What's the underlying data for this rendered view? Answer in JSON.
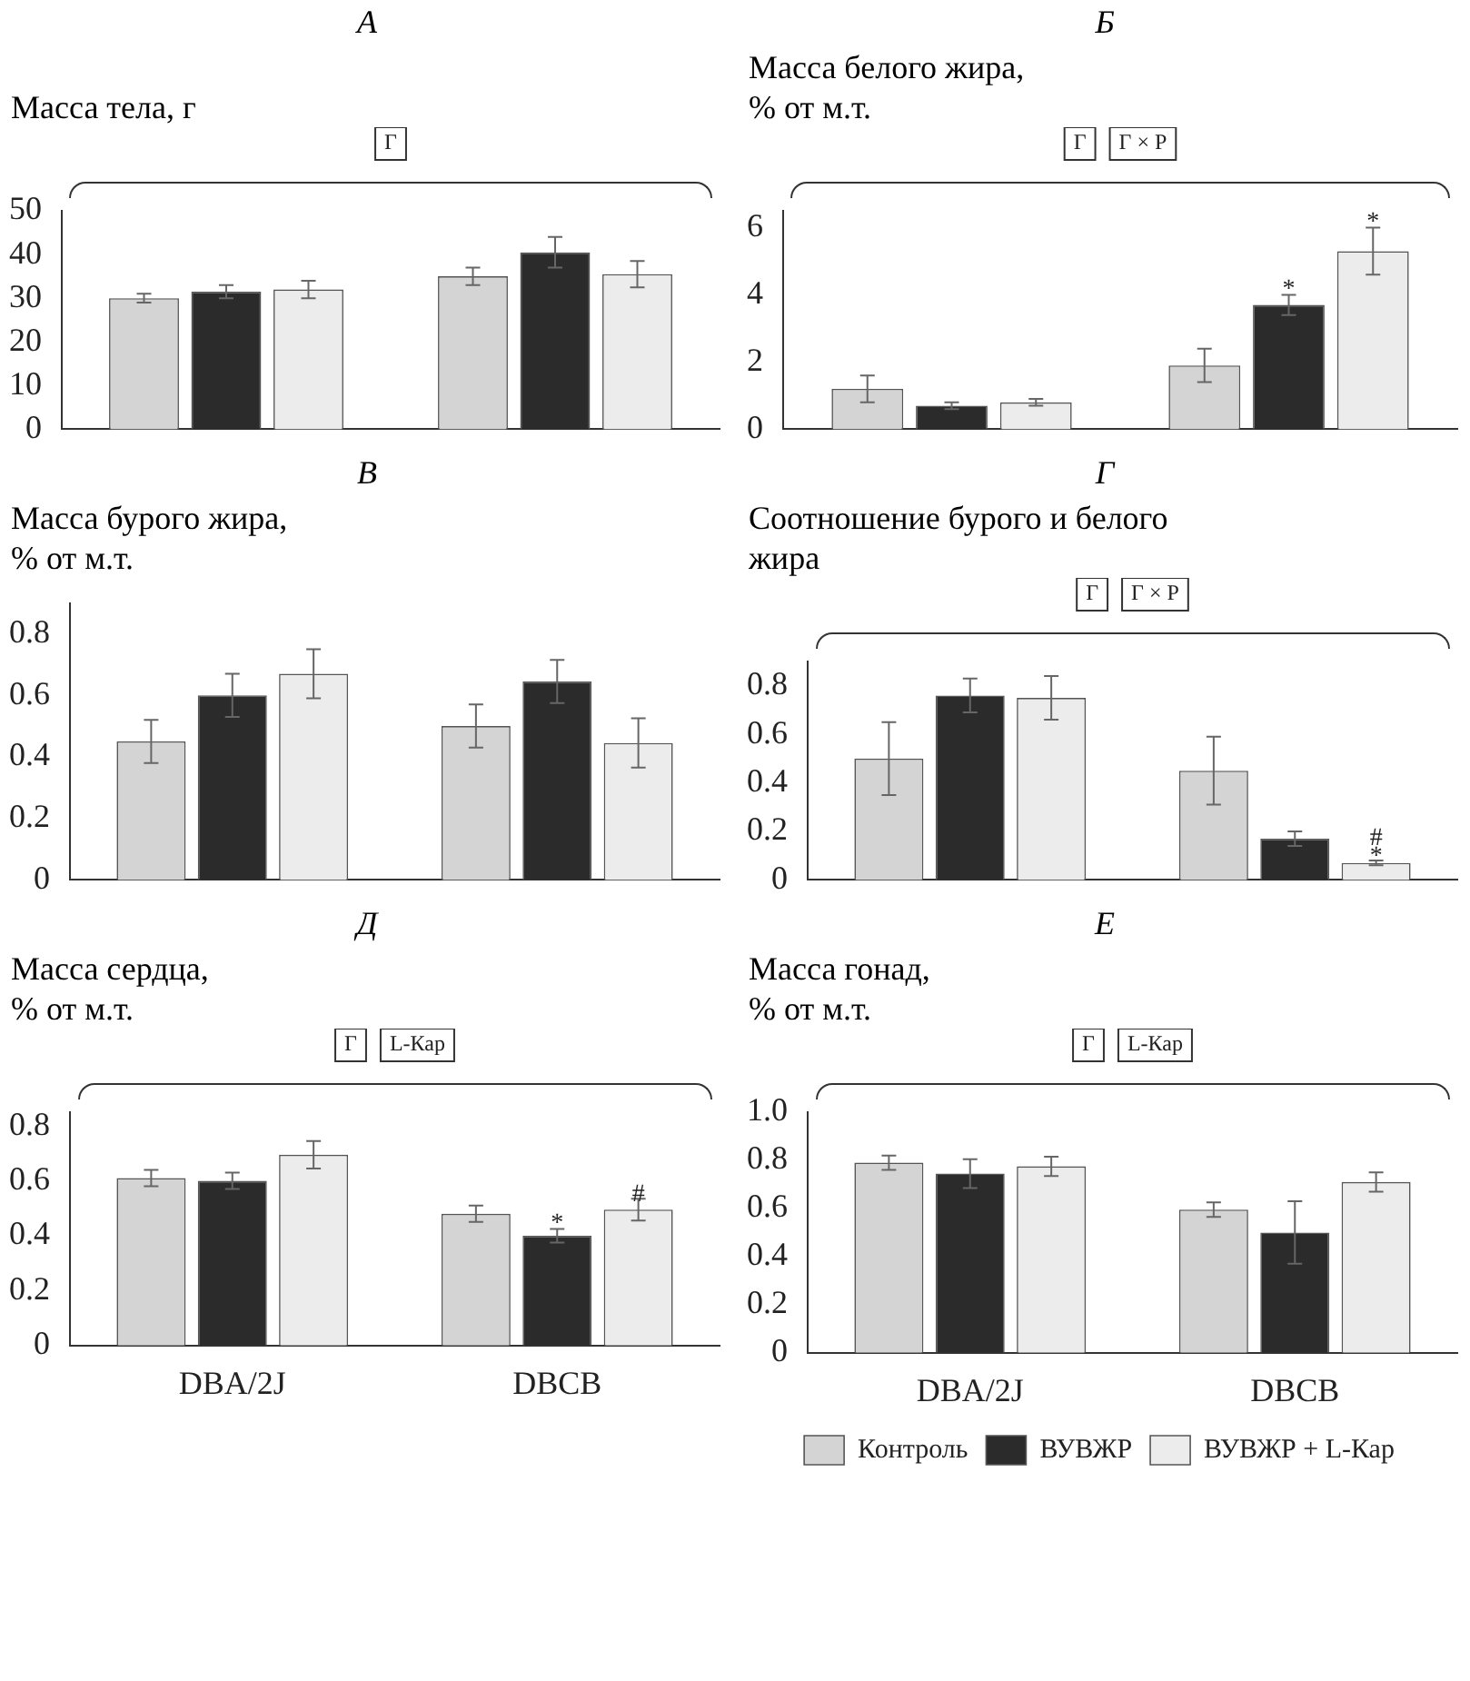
{
  "chart_data": [
    {
      "type": "bar",
      "title": "А",
      "ylabel": "Масса тела, г",
      "categories": [
        null,
        null
      ],
      "tick_labels": "y",
      "ylim": [
        0,
        50
      ],
      "yticks": [
        0,
        10,
        20,
        30,
        40,
        50
      ],
      "annotations": [
        "Г"
      ],
      "series": [
        {
          "color": "#d4d4d4",
          "values": [
            30,
            35
          ],
          "errors": [
            1,
            2
          ]
        },
        {
          "color": "#2b2b2b",
          "values": [
            31.5,
            40.5
          ],
          "errors": [
            1.5,
            3.5
          ]
        },
        {
          "color": "#ececec",
          "values": [
            32,
            35.5
          ],
          "errors": [
            2,
            3
          ]
        }
      ]
    },
    {
      "type": "bar",
      "title": "Б",
      "ylabel": "Масса белого жира,\n% от м.т.",
      "categories": [
        null,
        null
      ],
      "tick_labels": "y",
      "ylim": [
        0,
        6.5
      ],
      "yticks": [
        0,
        2,
        4,
        6
      ],
      "annotations": [
        "Г",
        "Г × Р"
      ],
      "series": [
        {
          "color": "#d4d4d4",
          "values": [
            1.2,
            1.9
          ],
          "errors": [
            0.4,
            0.5
          ]
        },
        {
          "color": "#2b2b2b",
          "values": [
            0.7,
            3.7
          ],
          "errors": [
            0.1,
            0.3
          ],
          "value_labels": [
            null,
            "*"
          ]
        },
        {
          "color": "#ececec",
          "values": [
            0.8,
            5.3
          ],
          "errors": [
            0.1,
            0.7
          ],
          "value_labels": [
            null,
            "*"
          ]
        }
      ]
    },
    {
      "type": "bar",
      "title": "В",
      "ylabel": "Масса бурого жира,\n% от м.т.",
      "categories": [
        null,
        null
      ],
      "tick_labels": "y",
      "ylim": [
        0,
        0.9
      ],
      "yticks": [
        0,
        0.2,
        0.4,
        0.6,
        0.8
      ],
      "series": [
        {
          "color": "#d4d4d4",
          "values": [
            0.45,
            0.5
          ],
          "errors": [
            0.07,
            0.07
          ]
        },
        {
          "color": "#2b2b2b",
          "values": [
            0.6,
            0.645
          ],
          "errors": [
            0.07,
            0.07
          ]
        },
        {
          "color": "#ececec",
          "values": [
            0.67,
            0.445
          ],
          "errors": [
            0.08,
            0.08
          ]
        }
      ]
    },
    {
      "type": "bar",
      "title": "Г",
      "ylabel": "Соотношение бурого и белого\nжира",
      "categories": [
        null,
        null
      ],
      "tick_labels": "y",
      "ylim": [
        0,
        0.9
      ],
      "yticks": [
        0,
        0.2,
        0.4,
        0.6,
        0.8
      ],
      "annotations": [
        "Г",
        "Г × Р"
      ],
      "series": [
        {
          "color": "#d4d4d4",
          "values": [
            0.5,
            0.45
          ],
          "errors": [
            0.15,
            0.14
          ]
        },
        {
          "color": "#2b2b2b",
          "values": [
            0.76,
            0.17
          ],
          "errors": [
            0.07,
            0.03
          ]
        },
        {
          "color": "#ececec",
          "values": [
            0.75,
            0.07
          ],
          "errors": [
            0.09,
            0.01
          ],
          "value_labels": [
            null,
            "#\n*"
          ]
        }
      ]
    },
    {
      "type": "bar",
      "title": "Д",
      "ylabel": "Масса сердца,\n% от м.т.",
      "categories": [
        "DBA/2J",
        "DBCB"
      ],
      "ylim": [
        0,
        0.85
      ],
      "yticks": [
        0,
        0.2,
        0.4,
        0.6,
        0.8
      ],
      "annotations": [
        "Г",
        "L-Кар"
      ],
      "series": [
        {
          "color": "#d4d4d4",
          "values": [
            0.61,
            0.48
          ],
          "errors": [
            0.03,
            0.03
          ]
        },
        {
          "color": "#2b2b2b",
          "values": [
            0.6,
            0.4
          ],
          "errors": [
            0.03,
            0.025
          ],
          "value_labels": [
            null,
            "*"
          ]
        },
        {
          "color": "#ececec",
          "values": [
            0.695,
            0.495
          ],
          "errors": [
            0.05,
            0.04
          ],
          "value_labels": [
            null,
            "#"
          ]
        }
      ]
    },
    {
      "type": "bar",
      "title": "Е",
      "ylabel": "Масса гонад,\n% от м.т.",
      "categories": [
        "DBA/2J",
        "DBCB"
      ],
      "ylim": [
        0,
        1
      ],
      "yticks": [
        0,
        {
          "value": 0.2,
          "label": "0.2"
        },
        0.4,
        0.6,
        0.8,
        {
          "value": 1,
          "label": "1.0"
        }
      ],
      "annotations": [
        "Г",
        "L-Кар"
      ],
      "legend": "bottom",
      "series": [
        {
          "name": "Контроль",
          "color": "#d4d4d4",
          "values": [
            0.79,
            0.595
          ],
          "errors": [
            0.03,
            0.03
          ]
        },
        {
          "name": "ВУВЖР",
          "color": "#2b2b2b",
          "values": [
            0.745,
            0.5
          ],
          "errors": [
            0.06,
            0.13
          ]
        },
        {
          "name": "ВУВЖР + L-Кар",
          "color": "#ececec",
          "values": [
            0.775,
            0.71
          ],
          "errors": [
            0.04,
            0.04
          ]
        }
      ]
    }
  ]
}
